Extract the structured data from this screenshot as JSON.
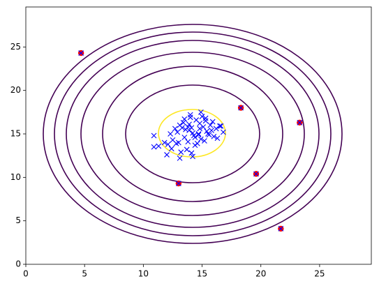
{
  "chart_data": {
    "type": "scatter",
    "xlim": [
      0,
      29.4
    ],
    "ylim": [
      0,
      29.6
    ],
    "xticks": [
      0,
      5,
      10,
      15,
      20,
      25
    ],
    "yticks": [
      0,
      5,
      10,
      15,
      20,
      25
    ],
    "grid": false,
    "series": [
      {
        "color": "#ff0000",
        "marker": "o",
        "x": [
          4.7,
          18.3,
          23.3,
          19.6,
          13.0,
          21.7
        ],
        "values": [
          24.3,
          18.0,
          16.3,
          10.4,
          9.3,
          4.1
        ]
      },
      {
        "color": "#0000ff",
        "marker": "x",
        "x": [
          14.2,
          13.5,
          15.1,
          12.8,
          14.8,
          13.9,
          15.6,
          14.4,
          13.1,
          16.2,
          14.0,
          12.5,
          15.3,
          14.7,
          13.7,
          15.9,
          14.9,
          13.3,
          12.1,
          16.5,
          14.5,
          13.8,
          15.4,
          14.1,
          12.9,
          16.0,
          13.4,
          15.0,
          14.3,
          11.8,
          15.7,
          14.6,
          13.6,
          12.3,
          16.8,
          14.0,
          13.2,
          15.2,
          14.8,
          11.3,
          10.9,
          10.9,
          12.0,
          16.3,
          13.0,
          14.9,
          15.5,
          13.9,
          14.4,
          12.7,
          15.8,
          14.2,
          13.5,
          16.6,
          12.4,
          14.1,
          15.3,
          13.1,
          14.7,
          13.8,
          4.7,
          18.3,
          23.3,
          19.6,
          13.0,
          21.7
        ],
        "values": [
          15.1,
          14.6,
          15.8,
          13.9,
          16.2,
          15.4,
          14.9,
          13.7,
          16.0,
          15.6,
          17.2,
          14.3,
          16.8,
          15.0,
          13.2,
          16.4,
          14.4,
          15.7,
          13.8,
          15.9,
          16.6,
          14.1,
          15.3,
          12.8,
          15.2,
          14.7,
          16.3,
          17.0,
          14.8,
          14.0,
          16.0,
          13.9,
          15.5,
          15.0,
          15.2,
          16.9,
          12.9,
          14.2,
          15.6,
          13.6,
          14.8,
          13.5,
          12.6,
          14.5,
          14.0,
          17.5,
          15.0,
          16.1,
          14.6,
          15.6,
          15.4,
          12.4,
          16.7,
          15.9,
          13.3,
          15.7,
          16.5,
          12.2,
          14.9,
          15.8,
          24.3,
          18.0,
          16.3,
          10.4,
          9.3,
          4.1
        ]
      }
    ]
  }
}
